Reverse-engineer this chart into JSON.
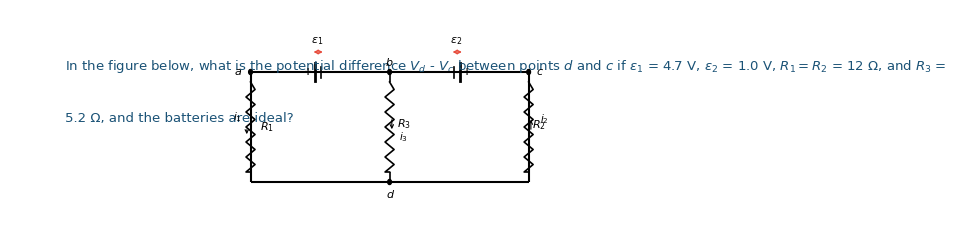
{
  "title_text": "In the figure below, what is the potential difference Vₐ - Vᶜ between points  d and c if ε₁ = 4.7 V, ε₂ = 1.0 V, R₁ = R₂ = 12 Ω, and R₃ =\n5.2 Ω, and the batteries are ideal?",
  "title_color": "#1a5276",
  "bg_color": "#ffffff",
  "circuit_color": "#000000",
  "battery_color": "#e74c3c",
  "fig_width": 9.17,
  "fig_height": 2.17
}
